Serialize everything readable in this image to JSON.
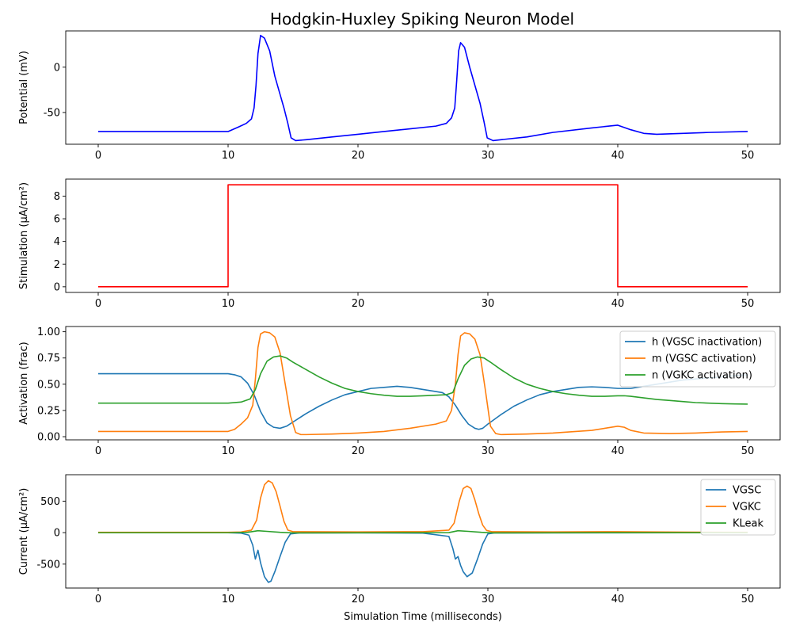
{
  "title": "Hodgkin-Huxley Spiking Neuron Model",
  "colors": {
    "blue": "#0000ff",
    "red": "#ff0000",
    "c0": "#1f77b4",
    "c1": "#ff7f0e",
    "c2": "#2ca02c"
  },
  "chart_data": [
    {
      "type": "line",
      "title": "Hodgkin-Huxley Spiking Neuron Model",
      "xlabel": "",
      "ylabel": "Potential (mV)",
      "xlim": [
        -2.5,
        52.5
      ],
      "ylim": [
        -85,
        40
      ],
      "xticks": [
        0,
        10,
        20,
        30,
        40,
        50
      ],
      "yticks": [
        -50,
        0
      ],
      "legend": "none",
      "series": [
        {
          "color": "#0000ff",
          "x": [
            0,
            10,
            10.8,
            11.4,
            11.8,
            12.0,
            12.15,
            12.3,
            12.5,
            12.8,
            13.2,
            13.6,
            14.0,
            14.3,
            14.6,
            14.85,
            15.2,
            16,
            18,
            20,
            22,
            24,
            26,
            26.8,
            27.2,
            27.45,
            27.6,
            27.75,
            27.9,
            28.2,
            28.6,
            29.0,
            29.4,
            29.7,
            29.95,
            30.4,
            31,
            33,
            35,
            38,
            40,
            41,
            42,
            43,
            45,
            47,
            50
          ],
          "y": [
            -71,
            -71,
            -66,
            -62,
            -57,
            -45,
            -20,
            15,
            35,
            32,
            18,
            -10,
            -30,
            -45,
            -62,
            -78,
            -81,
            -80,
            -77,
            -74,
            -71,
            -68,
            -65,
            -62,
            -56,
            -45,
            -15,
            18,
            27,
            22,
            0,
            -20,
            -40,
            -60,
            -78,
            -81,
            -80,
            -77,
            -72,
            -67,
            -64,
            -69,
            -73,
            -74,
            -73,
            -72,
            -71
          ]
        }
      ]
    },
    {
      "type": "line",
      "xlabel": "",
      "ylabel": "Stimulation (µA/cm²)",
      "xlim": [
        -2.5,
        52.5
      ],
      "ylim": [
        -0.5,
        9.5
      ],
      "xticks": [
        0,
        10,
        20,
        30,
        40,
        50
      ],
      "yticks": [
        0,
        2,
        4,
        6,
        8
      ],
      "legend": "none",
      "series": [
        {
          "color": "#ff0000",
          "x": [
            0,
            10,
            10,
            40,
            40,
            50
          ],
          "y": [
            0,
            0,
            9,
            9,
            0,
            0
          ]
        }
      ]
    },
    {
      "type": "line",
      "xlabel": "",
      "ylabel": "Activation (frac)",
      "xlim": [
        -2.5,
        52.5
      ],
      "ylim": [
        -0.03,
        1.05
      ],
      "xticks": [
        0,
        10,
        20,
        30,
        40,
        50
      ],
      "yticks": [
        0.0,
        0.25,
        0.5,
        0.75,
        1.0
      ],
      "ytick_labels": [
        "0.00",
        "0.25",
        "0.50",
        "0.75",
        "1.00"
      ],
      "legend": "top-right",
      "series": [
        {
          "name": "h (VGSC inactivation)",
          "color": "#1f77b4",
          "x": [
            0,
            10,
            10.5,
            11,
            11.5,
            12,
            12.5,
            13,
            13.5,
            14,
            14.5,
            15,
            16,
            17,
            18,
            19,
            20,
            21,
            22,
            23,
            24,
            25,
            26,
            26.5,
            27,
            27.5,
            28,
            28.5,
            29,
            29.3,
            29.6,
            30,
            31,
            32,
            33,
            34,
            35,
            36,
            37,
            38,
            39,
            40,
            41,
            42,
            43,
            44,
            45,
            46,
            47,
            48,
            49,
            50
          ],
          "y": [
            0.6,
            0.6,
            0.59,
            0.57,
            0.51,
            0.4,
            0.24,
            0.13,
            0.09,
            0.08,
            0.1,
            0.14,
            0.22,
            0.29,
            0.35,
            0.4,
            0.43,
            0.46,
            0.47,
            0.48,
            0.47,
            0.45,
            0.43,
            0.42,
            0.38,
            0.3,
            0.2,
            0.12,
            0.08,
            0.07,
            0.08,
            0.12,
            0.21,
            0.29,
            0.35,
            0.4,
            0.43,
            0.45,
            0.47,
            0.475,
            0.47,
            0.46,
            0.46,
            0.48,
            0.5,
            0.52,
            0.54,
            0.55,
            0.56,
            0.57,
            0.58,
            0.59
          ]
        },
        {
          "name": "m (VGSC activation)",
          "color": "#ff7f0e",
          "x": [
            0,
            10,
            10.5,
            11,
            11.5,
            11.9,
            12.1,
            12.3,
            12.5,
            12.8,
            13.2,
            13.6,
            14.0,
            14.4,
            14.8,
            15.2,
            15.6,
            16,
            18,
            20,
            22,
            24,
            26,
            26.8,
            27.2,
            27.5,
            27.7,
            27.9,
            28.2,
            28.6,
            29.0,
            29.4,
            29.8,
            30.2,
            30.6,
            31,
            33,
            35,
            38,
            40,
            40.5,
            41,
            42,
            44,
            46,
            48,
            50
          ],
          "y": [
            0.05,
            0.05,
            0.07,
            0.12,
            0.18,
            0.3,
            0.55,
            0.85,
            0.98,
            1.0,
            0.99,
            0.95,
            0.8,
            0.5,
            0.2,
            0.04,
            0.02,
            0.02,
            0.025,
            0.035,
            0.05,
            0.08,
            0.12,
            0.15,
            0.25,
            0.5,
            0.78,
            0.96,
            0.99,
            0.98,
            0.93,
            0.78,
            0.45,
            0.1,
            0.03,
            0.02,
            0.025,
            0.035,
            0.06,
            0.1,
            0.09,
            0.06,
            0.035,
            0.03,
            0.035,
            0.045,
            0.05
          ]
        },
        {
          "name": "n (VGKC activation)",
          "color": "#2ca02c",
          "x": [
            0,
            10,
            11,
            11.7,
            12.1,
            12.5,
            13,
            13.5,
            14,
            14.5,
            15,
            16,
            17,
            18,
            19,
            20,
            21,
            22,
            23,
            24,
            25,
            26,
            26.8,
            27.3,
            27.7,
            28.2,
            28.7,
            29.2,
            29.7,
            30.2,
            31,
            32,
            33,
            34,
            35,
            36,
            37,
            38,
            39,
            40,
            40.5,
            41,
            42,
            43,
            44,
            45,
            46,
            47,
            48,
            49,
            50
          ],
          "y": [
            0.32,
            0.32,
            0.33,
            0.36,
            0.45,
            0.6,
            0.72,
            0.76,
            0.77,
            0.75,
            0.71,
            0.64,
            0.57,
            0.51,
            0.46,
            0.43,
            0.41,
            0.395,
            0.385,
            0.385,
            0.39,
            0.395,
            0.4,
            0.42,
            0.55,
            0.68,
            0.74,
            0.76,
            0.75,
            0.71,
            0.64,
            0.56,
            0.5,
            0.46,
            0.43,
            0.41,
            0.395,
            0.385,
            0.385,
            0.39,
            0.39,
            0.385,
            0.37,
            0.355,
            0.345,
            0.335,
            0.325,
            0.32,
            0.315,
            0.312,
            0.31
          ]
        }
      ]
    },
    {
      "type": "line",
      "xlabel": "Simulation Time (milliseconds)",
      "ylabel": "Current (µA/cm²)",
      "xlim": [
        -2.5,
        52.5
      ],
      "ylim": [
        -880,
        920
      ],
      "xticks": [
        0,
        10,
        20,
        30,
        40,
        50
      ],
      "yticks": [
        -500,
        0,
        500
      ],
      "legend": "top-right",
      "series": [
        {
          "name": "VGSC",
          "color": "#1f77b4",
          "x": [
            0,
            10,
            11,
            11.6,
            11.9,
            12.1,
            12.3,
            12.5,
            12.8,
            13.1,
            13.3,
            13.6,
            14.0,
            14.4,
            14.8,
            15.5,
            20,
            25,
            27,
            27.3,
            27.5,
            27.7,
            27.9,
            28.1,
            28.4,
            28.8,
            29.2,
            29.6,
            30,
            30.5,
            35,
            40,
            45,
            50
          ],
          "y": [
            -2,
            -2,
            -8,
            -40,
            -200,
            -420,
            -280,
            -480,
            -700,
            -790,
            -770,
            -620,
            -380,
            -150,
            -20,
            -5,
            -3,
            -8,
            -60,
            -250,
            -420,
            -380,
            -520,
            -620,
            -700,
            -640,
            -420,
            -180,
            -20,
            -5,
            -3,
            -3,
            -2,
            -2
          ]
        },
        {
          "name": "VGKC",
          "color": "#ff7f0e",
          "x": [
            0,
            10,
            11,
            11.8,
            12.2,
            12.5,
            12.8,
            13.1,
            13.4,
            13.7,
            14.0,
            14.3,
            14.6,
            15,
            20,
            25,
            27,
            27.4,
            27.8,
            28.1,
            28.4,
            28.7,
            29.0,
            29.3,
            29.6,
            29.9,
            30.3,
            35,
            40,
            45,
            50
          ],
          "y": [
            5,
            5,
            10,
            40,
            200,
            550,
            760,
            825,
            790,
            650,
            420,
            180,
            40,
            15,
            12,
            15,
            40,
            150,
            500,
            700,
            740,
            700,
            520,
            300,
            120,
            35,
            15,
            12,
            15,
            8,
            5
          ]
        },
        {
          "name": "KLeak",
          "color": "#2ca02c",
          "x": [
            0,
            10,
            11.5,
            12.3,
            13,
            14,
            15,
            20,
            27,
            27.7,
            28.5,
            29.5,
            30.5,
            40,
            50
          ],
          "y": [
            -2,
            -2,
            5,
            30,
            20,
            5,
            -4,
            -3,
            0,
            30,
            20,
            5,
            -4,
            -1,
            -2
          ]
        }
      ]
    }
  ]
}
